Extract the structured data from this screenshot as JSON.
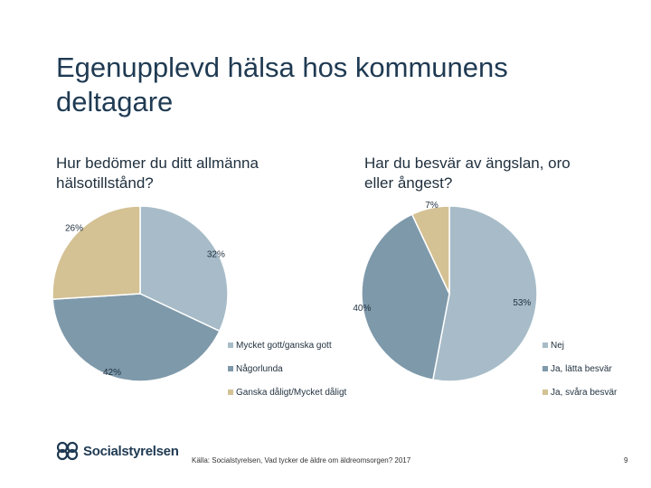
{
  "slide": {
    "title": "Egenupplevd hälsa hos kommunens deltagare",
    "source": "Källa: Socialstyrelsen, Vad tycker de äldre om äldreomsorgen? 2017",
    "page_number": "9",
    "logo_text": "Socialstyrelsen"
  },
  "chart_data": [
    {
      "type": "pie",
      "title": "Hur bedömer du ditt allmänna hälsotillstånd?",
      "categories": [
        "Mycket gott/ganska gott",
        "Någorlunda",
        "Ganska dåligt/Mycket dåligt"
      ],
      "values": [
        32,
        42,
        26
      ],
      "data_labels": [
        "32%",
        "42%",
        "26%"
      ],
      "colors": [
        "#a7bcc8",
        "#7e99aa",
        "#d4c194"
      ],
      "legend_position": "right"
    },
    {
      "type": "pie",
      "title": "Har du besvär av ängslan, oro eller ångest?",
      "categories": [
        "Nej",
        "Ja, lätta besvär",
        "Ja, svåra besvär"
      ],
      "values": [
        53,
        40,
        7
      ],
      "data_labels": [
        "53%",
        "40%",
        "7%"
      ],
      "colors": [
        "#a7bcc8",
        "#7e99aa",
        "#d4c194"
      ],
      "legend_position": "right"
    }
  ]
}
